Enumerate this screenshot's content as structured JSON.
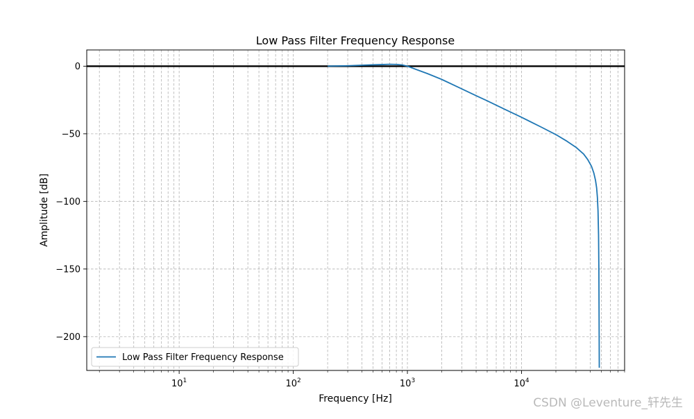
{
  "chart_data": {
    "type": "line",
    "title": "Low Pass Filter Frequency Response",
    "xlabel": "Frequency [Hz]",
    "ylabel": "Amplitude [dB]",
    "xscale": "log",
    "xlim": [
      1.55,
      80000
    ],
    "ylim": [
      -225,
      12
    ],
    "x_major_ticks": [
      10,
      100,
      1000,
      10000
    ],
    "x_tick_labels": [
      {
        "base": "10",
        "exp": "1"
      },
      {
        "base": "10",
        "exp": "2"
      },
      {
        "base": "10",
        "exp": "3"
      },
      {
        "base": "10",
        "exp": "4"
      }
    ],
    "y_ticks": [
      0,
      -50,
      -100,
      -150,
      -200
    ],
    "y_tick_labels": [
      "0",
      "−50",
      "−100",
      "−150",
      "−200"
    ],
    "grid": true,
    "grid_style": "dashed",
    "reference_line": {
      "y": 0,
      "color": "#000000"
    },
    "legend": {
      "location": "lower-left",
      "label": "Low Pass Filter Frequency Response"
    },
    "series": [
      {
        "name": "Low Pass Filter Frequency Response",
        "color": "#1f77b4",
        "x": [
          200,
          300,
          400,
          500,
          600,
          700,
          800,
          900,
          1000,
          1200,
          1500,
          2000,
          3000,
          4000,
          5000,
          7000,
          10000,
          15000,
          20000,
          25000,
          30000,
          35000,
          38000,
          41000,
          43000,
          44500,
          45500,
          46200,
          46800,
          47300,
          47600,
          47800,
          48000
        ],
        "values": [
          0,
          0.3,
          0.7,
          1.0,
          1.2,
          1.4,
          1.3,
          0.9,
          0,
          -2.5,
          -5.5,
          -9.8,
          -16.8,
          -21.8,
          -25.6,
          -31.6,
          -37.8,
          -45.2,
          -50.6,
          -55.5,
          -60.0,
          -65.0,
          -69.0,
          -74.0,
          -79.0,
          -84.5,
          -90.0,
          -97.0,
          -107.0,
          -125.0,
          -150.0,
          -185.0,
          -223.0
        ]
      }
    ]
  },
  "watermark": "CSDN @Leventure_轩先生"
}
